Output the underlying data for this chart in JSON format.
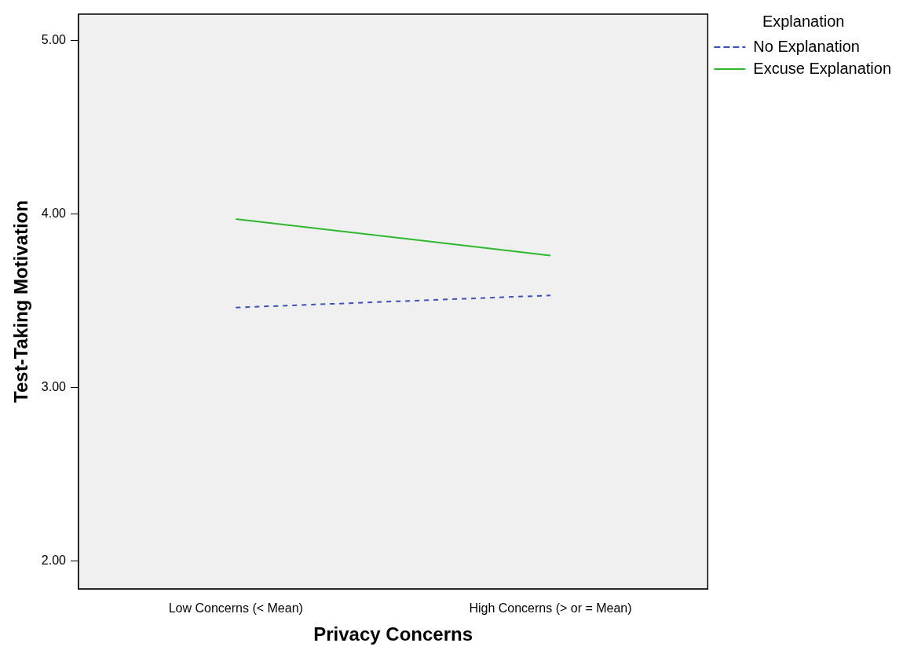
{
  "chart_data": {
    "type": "line",
    "xlabel": "Privacy Concerns",
    "ylabel": "Test-Taking Motivation",
    "legend_title": "Explanation",
    "legend": "top right",
    "grid": false,
    "marker": "none",
    "categories": [
      "Low Concerns (< Mean)",
      "High Concerns (> or = Mean)"
    ],
    "ylim": [
      1.84,
      5.15
    ],
    "yticks": [
      {
        "value": 2,
        "label": "2.00"
      },
      {
        "value": 3,
        "label": "3.00"
      },
      {
        "value": 4,
        "label": "4.00"
      },
      {
        "value": 5,
        "label": "5.00"
      }
    ],
    "series": [
      {
        "name": "No Explanation",
        "color": "#3f51b5",
        "line_style": "dashed",
        "values": [
          3.46,
          3.53
        ]
      },
      {
        "name": "Excuse Explanation",
        "color": "#2eb82e",
        "line_style": "solid",
        "values": [
          3.97,
          3.76
        ]
      }
    ]
  }
}
